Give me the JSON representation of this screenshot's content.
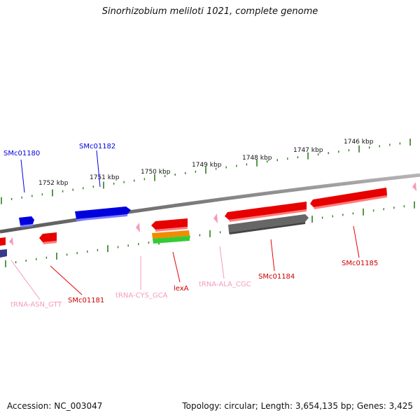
{
  "title": "Sinorhizobium meliloti 1021, complete genome",
  "footer": {
    "accession": "Accession: NC_003047",
    "summary": "Topology: circular; Length: 3,654,135 bp; Genes: 3,425"
  },
  "scale_labels": [
    "1752 kbp",
    "1751 kbp",
    "1750 kbp",
    "1749 kbp",
    "1748 kbp",
    "1747 kbp",
    "1746 kbp"
  ],
  "gene_labels": {
    "smc01180": "SMc01180",
    "smc01182": "SMc01182",
    "trna_asn": "tRNA-ASN_GTT",
    "smc01181": "SMc01181",
    "trna_cys": "tRNA-CYS_GCA",
    "lexa": "lexA",
    "trna_ala": "tRNA-ALA_CGC",
    "smc01184": "SMc01184",
    "smc01185": "SMc01185"
  },
  "colors": {
    "backbone": "#8c8c8c",
    "scale_tick": "#2e7d1e",
    "cds_red": "#e60000",
    "cds_blue": "#0000dd",
    "trna_pink": "#f49ac1",
    "pseudo_gray": "#666666",
    "orange": "#f08c00",
    "green": "#33cc33"
  }
}
